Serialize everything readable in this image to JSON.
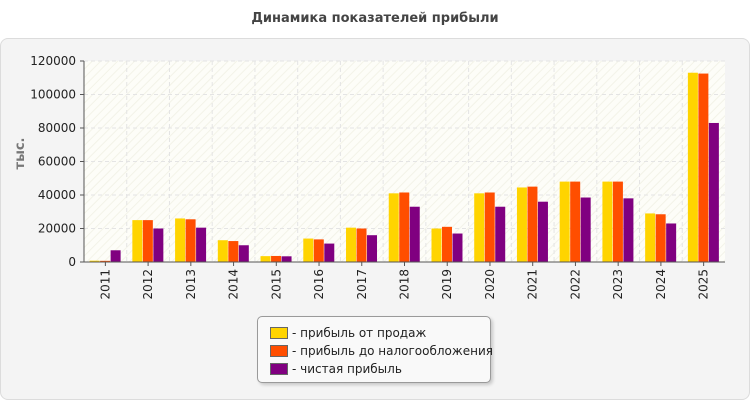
{
  "page": {
    "title": "Динамика показателей прибыли"
  },
  "colors": {
    "series": [
      "#FFD400",
      "#FF4E00",
      "#800080"
    ],
    "grid": "#e4e4e4",
    "axis": "#555555"
  },
  "chart_data": {
    "type": "bar",
    "title": "Динамика показателей прибыли",
    "xlabel": "",
    "ylabel": "тыс.",
    "ylim": [
      0,
      120000
    ],
    "yticks": [
      "0",
      "20000",
      "40000",
      "60000",
      "80000",
      "100000",
      "120000"
    ],
    "grid": true,
    "legend_position": "bottom",
    "categories": [
      "2011",
      "2012",
      "2013",
      "2014",
      "2015",
      "2016",
      "2017",
      "2018",
      "2019",
      "2020",
      "2021",
      "2022",
      "2023",
      "2024",
      "2025"
    ],
    "series": [
      {
        "name": "- прибыль от продаж",
        "values": [
          800,
          25000,
          26000,
          13000,
          3500,
          14000,
          20500,
          41000,
          20000,
          41000,
          44500,
          48000,
          48000,
          29000,
          113000
        ]
      },
      {
        "name": "- прибыль до налогообложения",
        "values": [
          700,
          25000,
          25500,
          12500,
          3600,
          13500,
          20000,
          41500,
          21000,
          41500,
          45000,
          48000,
          48000,
          28500,
          112500
        ]
      },
      {
        "name": "- чистая прибыль",
        "values": [
          7000,
          20000,
          20500,
          10000,
          3400,
          11000,
          16000,
          33000,
          17000,
          33000,
          36000,
          38500,
          38000,
          23000,
          83000
        ]
      }
    ]
  }
}
